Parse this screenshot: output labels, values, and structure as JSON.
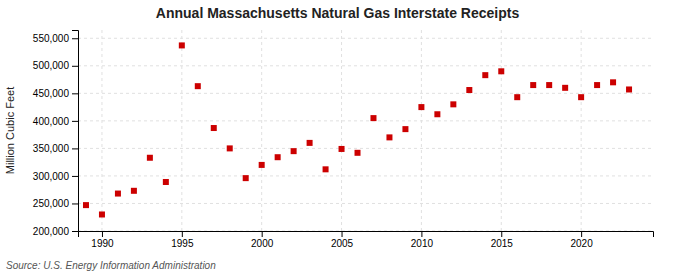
{
  "chart_data": {
    "type": "scatter",
    "title": "Annual Massachusetts Natural Gas Interstate Receipts",
    "ylabel": "Million Cubic Feet",
    "annotations": [
      "Source: U.S. Energy Information Administration"
    ],
    "x": [
      1989,
      1990,
      1991,
      1992,
      1993,
      1994,
      1995,
      1996,
      1997,
      1998,
      1999,
      2000,
      2001,
      2002,
      2003,
      2004,
      2005,
      2006,
      2007,
      2008,
      2009,
      2010,
      2011,
      2012,
      2013,
      2014,
      2015,
      2016,
      2017,
      2018,
      2019,
      2020,
      2021,
      2022,
      2023
    ],
    "values": [
      247000,
      230000,
      268000,
      273000,
      333000,
      289000,
      537000,
      463000,
      387000,
      350000,
      296000,
      320000,
      334000,
      345000,
      360000,
      312000,
      349000,
      342000,
      405000,
      370000,
      385000,
      425000,
      412000,
      430000,
      456000,
      483000,
      490000,
      443000,
      465000,
      465000,
      460000,
      443000,
      465000,
      470000,
      457000
    ],
    "color": "#cc0000",
    "marker": "square",
    "grid": true,
    "xlim": [
      1988.5,
      2024.5
    ],
    "xticks": [
      1990,
      1995,
      2000,
      2005,
      2010,
      2015,
      2020
    ],
    "ylim": [
      200000,
      565000
    ],
    "yticks": [
      {
        "value": 200000,
        "label": "200,000"
      },
      {
        "value": 250000,
        "label": "250,000"
      },
      {
        "value": 300000,
        "label": "300,000"
      },
      {
        "value": 350000,
        "label": "350,000"
      },
      {
        "value": 400000,
        "label": "400,000"
      },
      {
        "value": 450000,
        "label": "450,000"
      },
      {
        "value": 500000,
        "label": "500,000"
      },
      {
        "value": 550000,
        "label": "550,000"
      }
    ]
  }
}
